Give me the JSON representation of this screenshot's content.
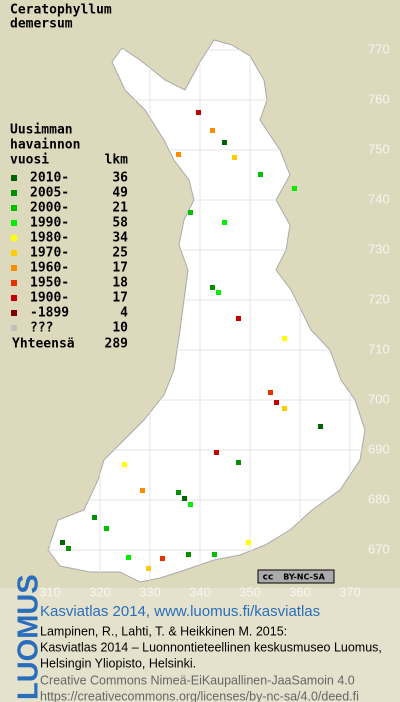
{
  "title": [
    "Ceratophyllum",
    "demersum"
  ],
  "legend": {
    "heading": [
      "Uusimman",
      "havainnon",
      "vuosi"
    ],
    "count_heading": "lkm",
    "rows": [
      {
        "label": "2010-",
        "count": 36,
        "color": "#006400"
      },
      {
        "label": "2005-",
        "count": 49,
        "color": "#009000"
      },
      {
        "label": "2000-",
        "count": 21,
        "color": "#00c000"
      },
      {
        "label": "1990-",
        "count": 58,
        "color": "#00ee00"
      },
      {
        "label": "1980-",
        "count": 34,
        "color": "#ffff00"
      },
      {
        "label": "1970-",
        "count": 25,
        "color": "#ffcc00"
      },
      {
        "label": "1960-",
        "count": 17,
        "color": "#ff8c00"
      },
      {
        "label": "1950-",
        "count": 18,
        "color": "#e83000"
      },
      {
        "label": "1900-",
        "count": 17,
        "color": "#c80000"
      },
      {
        "label": "-1899",
        "count": 4,
        "color": "#800000"
      },
      {
        "label": "???",
        "count": 10,
        "color": "#c0c0c0"
      }
    ],
    "total_label": "Yhteensä",
    "total": 289
  },
  "map": {
    "xlim": [
      300,
      380
    ],
    "ylim": [
      666,
      780
    ],
    "xticks": [
      310,
      320,
      330,
      340,
      350,
      360,
      370
    ],
    "yticks": [
      670,
      680,
      690,
      700,
      710,
      720,
      730,
      740,
      750,
      760,
      770
    ]
  },
  "badge": [
    "cc",
    "BY-NC-SA"
  ],
  "footer": {
    "brand": "LUOMUS",
    "headline": "Kasviatlas 2014, www.luomus.fi/kasviatlas",
    "citation": [
      "Lampinen, R., Lahti, T. & Heikkinen M. 2015:",
      "Kasviatlas 2014 – Luonnontieteellinen keskusmuseo Luomus,",
      "Helsingin Yliopisto, Helsinki."
    ],
    "license": [
      "Creative Commons Nimeä-EiKaupallinen-JaaSamoin 4.0",
      "https://creativecommons.org/licenses/by-nc-sa/4.0/deed.fi"
    ]
  }
}
